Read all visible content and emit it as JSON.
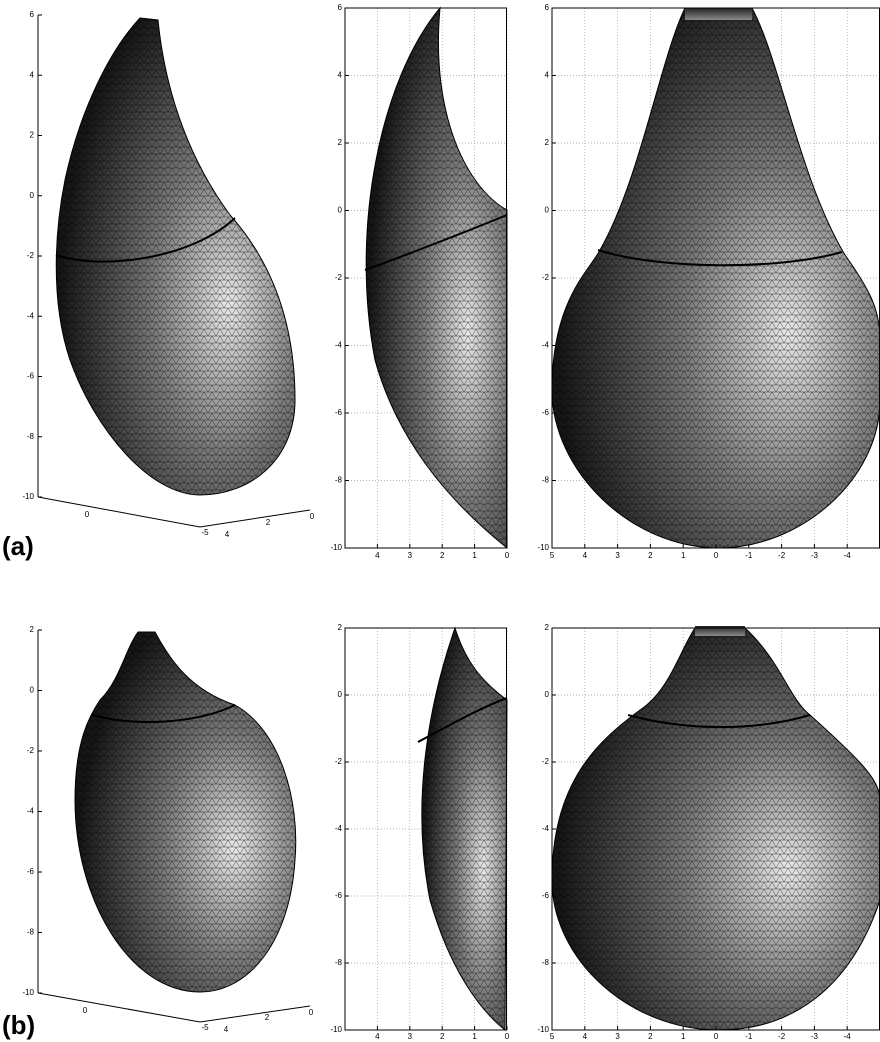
{
  "panels": [
    {
      "label": "(a)",
      "views": [
        {
          "zticks": [
            6,
            4,
            2,
            0,
            -2,
            -4,
            -6,
            -8,
            -10
          ],
          "xticks": [
            0,
            -5
          ],
          "yticks": [
            4,
            2,
            0
          ]
        },
        {
          "yticks": [
            6,
            4,
            2,
            0,
            -2,
            -4,
            -6,
            -8,
            -10
          ],
          "xticks": [
            4,
            3,
            2,
            1,
            0
          ]
        },
        {
          "yticks": [
            6,
            4,
            2,
            0,
            -2,
            -4,
            -6,
            -8,
            -10
          ],
          "xticks": [
            5,
            4,
            3,
            2,
            1,
            0,
            -1,
            -2,
            -3,
            -4
          ]
        }
      ]
    },
    {
      "label": "(b)",
      "views": [
        {
          "zticks": [
            2,
            0,
            -2,
            -4,
            -6,
            -8,
            -10
          ],
          "xticks": [
            0,
            -5
          ],
          "yticks": [
            4,
            2,
            0
          ]
        },
        {
          "yticks": [
            2,
            0,
            -2,
            -4,
            -6,
            -8,
            -10
          ],
          "xticks": [
            4,
            3,
            2,
            1,
            0
          ]
        },
        {
          "yticks": [
            2,
            0,
            -2,
            -4,
            -6,
            -8,
            -10
          ],
          "xticks": [
            5,
            4,
            3,
            2,
            1,
            0,
            -1,
            -2,
            -3,
            -4
          ]
        }
      ]
    }
  ]
}
